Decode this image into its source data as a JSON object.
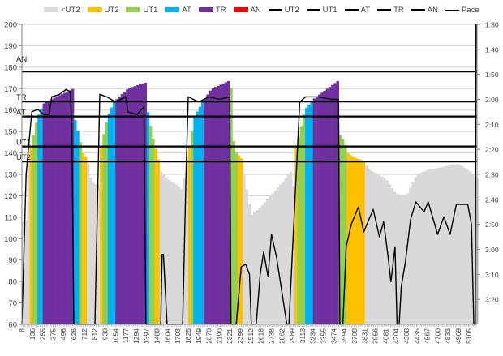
{
  "chart_data": {
    "type": "bar",
    "title": "",
    "xlabel": "",
    "ylabel": "",
    "ylim": [
      60,
      200
    ],
    "yticks": [
      60,
      70,
      80,
      90,
      100,
      110,
      120,
      130,
      140,
      150,
      160,
      170,
      180,
      190,
      200
    ],
    "y2lim_seconds": [
      90,
      210
    ],
    "y2ticks": [
      "1:30",
      "1:40",
      "1:50",
      "2:00",
      "2:10",
      "2:20",
      "2:30",
      "2:40",
      "2:50",
      "3:00",
      "3:10",
      "3:20"
    ],
    "y2ticks_seconds": [
      90,
      100,
      110,
      120,
      130,
      140,
      150,
      160,
      170,
      180,
      190,
      200
    ],
    "x_tick_labels": [
      "8",
      "136",
      "255",
      "375",
      "496",
      "626",
      "712",
      "812",
      "930",
      "1054",
      "1177",
      "1294",
      "1397",
      "1489",
      "1604",
      "1703",
      "1825",
      "1949",
      "2070",
      "2190",
      "2321",
      "2399",
      "2512",
      "2618",
      "2738",
      "2862",
      "2989",
      "3113",
      "3234",
      "3355",
      "3474",
      "3594",
      "3709",
      "3831",
      "3956",
      "4081",
      "4204",
      "4308",
      "4435",
      "4567",
      "4700",
      "4833",
      "4969",
      "5105"
    ],
    "x_max": 5210,
    "grid": true,
    "legend_position": "top",
    "zone_colors": {
      "<UT2": "#d9d9d9",
      "UT2": "#ffc000",
      "UT1": "#92d050",
      "AT": "#00b0f0",
      "TR": "#7030a0",
      "AN": "#ff0000"
    },
    "legend": [
      {
        "label": "<UT2",
        "type": "bar",
        "color": "#d9d9d9"
      },
      {
        "label": "UT2",
        "type": "bar",
        "color": "#ffc000"
      },
      {
        "label": "UT1",
        "type": "bar",
        "color": "#92d050"
      },
      {
        "label": "AT",
        "type": "bar",
        "color": "#00b0f0"
      },
      {
        "label": "TR",
        "type": "bar",
        "color": "#7030a0"
      },
      {
        "label": "AN",
        "type": "bar",
        "color": "#ff0000"
      },
      {
        "label": "UT2",
        "type": "line",
        "color": "#000000"
      },
      {
        "label": "UT1",
        "type": "line",
        "color": "#000000"
      },
      {
        "label": "AT",
        "type": "line",
        "color": "#000000"
      },
      {
        "label": "TR",
        "type": "line",
        "color": "#000000"
      },
      {
        "label": "AN",
        "type": "line",
        "color": "#000000"
      },
      {
        "label": "Pace",
        "type": "thinline",
        "color": "#000000"
      }
    ],
    "threshold_lines": [
      {
        "name": "AN",
        "value": 178
      },
      {
        "name": "TR",
        "value": 164
      },
      {
        "name": "AT",
        "value": 157
      },
      {
        "name": "UT1",
        "value": 143
      },
      {
        "name": "UT2",
        "value": 136
      }
    ],
    "heart_rate_series": [
      [
        8,
        108
      ],
      [
        60,
        108
      ],
      [
        90,
        140
      ],
      [
        130,
        144
      ],
      [
        190,
        156
      ],
      [
        265,
        163
      ],
      [
        400,
        166
      ],
      [
        620,
        170
      ],
      [
        625,
        158
      ],
      [
        660,
        150
      ],
      [
        700,
        140
      ],
      [
        745,
        137
      ],
      [
        760,
        130
      ],
      [
        800,
        126
      ],
      [
        860,
        125
      ],
      [
        870,
        140
      ],
      [
        900,
        146
      ],
      [
        960,
        157
      ],
      [
        1040,
        164
      ],
      [
        1200,
        170
      ],
      [
        1400,
        173
      ],
      [
        1405,
        160
      ],
      [
        1460,
        145
      ],
      [
        1500,
        138
      ],
      [
        1520,
        132
      ],
      [
        1600,
        128
      ],
      [
        1760,
        123
      ],
      [
        1815,
        138
      ],
      [
        1850,
        145
      ],
      [
        1900,
        157
      ],
      [
        2000,
        164
      ],
      [
        2100,
        170
      ],
      [
        2330,
        174
      ],
      [
        2335,
        150
      ],
      [
        2370,
        140
      ],
      [
        2420,
        137
      ],
      [
        2440,
        130
      ],
      [
        2520,
        111
      ],
      [
        2620,
        115
      ],
      [
        2862,
        126
      ],
      [
        2990,
        132
      ],
      [
        3000,
        120
      ],
      [
        3020,
        140
      ],
      [
        3060,
        146
      ],
      [
        3140,
        160
      ],
      [
        3235,
        165
      ],
      [
        3535,
        174
      ],
      [
        3540,
        149
      ],
      [
        3600,
        145
      ],
      [
        3630,
        140
      ],
      [
        3700,
        138
      ],
      [
        3840,
        136
      ],
      [
        3850,
        133
      ],
      [
        4081,
        128
      ],
      [
        4204,
        121
      ],
      [
        4308,
        120
      ],
      [
        4435,
        130
      ],
      [
        4567,
        132
      ],
      [
        4833,
        134
      ],
      [
        4969,
        135
      ],
      [
        5105,
        132
      ],
      [
        5210,
        128
      ]
    ],
    "zone_segments": [
      [
        8,
        90,
        "<UT2"
      ],
      [
        90,
        130,
        "UT2"
      ],
      [
        130,
        190,
        "UT1"
      ],
      [
        190,
        265,
        "AT"
      ],
      [
        265,
        620,
        "TR"
      ],
      [
        620,
        660,
        "AT"
      ],
      [
        660,
        700,
        "UT1"
      ],
      [
        700,
        745,
        "UT2"
      ],
      [
        745,
        860,
        "<UT2"
      ],
      [
        860,
        890,
        "UT2"
      ],
      [
        890,
        960,
        "UT1"
      ],
      [
        960,
        1040,
        "AT"
      ],
      [
        1040,
        1400,
        "TR"
      ],
      [
        1400,
        1420,
        "AT"
      ],
      [
        1420,
        1460,
        "UT1"
      ],
      [
        1460,
        1510,
        "UT2"
      ],
      [
        1510,
        1815,
        "<UT2"
      ],
      [
        1815,
        1850,
        "UT2"
      ],
      [
        1850,
        1900,
        "UT1"
      ],
      [
        1900,
        2000,
        "AT"
      ],
      [
        2000,
        2330,
        "TR"
      ],
      [
        2330,
        2370,
        "UT1"
      ],
      [
        2370,
        2420,
        "UT2"
      ],
      [
        2420,
        3020,
        "<UT2"
      ],
      [
        3020,
        3060,
        "UT2"
      ],
      [
        3060,
        3140,
        "UT1"
      ],
      [
        3140,
        3235,
        "AT"
      ],
      [
        3235,
        3535,
        "TR"
      ],
      [
        3535,
        3630,
        "UT1"
      ],
      [
        3630,
        3840,
        "UT2"
      ],
      [
        3840,
        5210,
        "<UT2"
      ]
    ],
    "pace_series_seconds": [
      [
        8,
        210
      ],
      [
        60,
        150
      ],
      [
        130,
        125
      ],
      [
        200,
        124
      ],
      [
        260,
        126
      ],
      [
        330,
        126
      ],
      [
        360,
        119
      ],
      [
        450,
        118
      ],
      [
        530,
        116
      ],
      [
        580,
        117
      ],
      [
        600,
        130
      ],
      [
        625,
        210
      ],
      [
        815,
        210
      ],
      [
        870,
        118
      ],
      [
        950,
        119
      ],
      [
        1054,
        121
      ],
      [
        1177,
        119
      ],
      [
        1200,
        125
      ],
      [
        1300,
        126
      ],
      [
        1370,
        123
      ],
      [
        1390,
        210
      ],
      [
        1530,
        210
      ],
      [
        1545,
        182
      ],
      [
        1560,
        182
      ],
      [
        1600,
        210
      ],
      [
        1760,
        210
      ],
      [
        1800,
        150
      ],
      [
        1825,
        119
      ],
      [
        1950,
        121
      ],
      [
        2070,
        119
      ],
      [
        2190,
        120
      ],
      [
        2321,
        119
      ],
      [
        2330,
        210
      ],
      [
        2370,
        210
      ],
      [
        2410,
        187
      ],
      [
        2460,
        186
      ],
      [
        2500,
        190
      ],
      [
        2520,
        210
      ],
      [
        2570,
        210
      ],
      [
        2610,
        190
      ],
      [
        2650,
        181
      ],
      [
        2700,
        191
      ],
      [
        2740,
        174
      ],
      [
        2800,
        183
      ],
      [
        2925,
        210
      ],
      [
        2950,
        210
      ],
      [
        3080,
        121
      ],
      [
        3150,
        119
      ],
      [
        3300,
        119
      ],
      [
        3450,
        120
      ],
      [
        3530,
        120
      ],
      [
        3545,
        210
      ],
      [
        3580,
        210
      ],
      [
        3617,
        179
      ],
      [
        3674,
        170
      ],
      [
        3755,
        163
      ],
      [
        3818,
        173
      ],
      [
        3931,
        164
      ],
      [
        4006,
        175
      ],
      [
        4056,
        169
      ],
      [
        4106,
        182
      ],
      [
        4143,
        193
      ],
      [
        4192,
        179
      ],
      [
        4214,
        210
      ],
      [
        4235,
        210
      ],
      [
        4256,
        195
      ],
      [
        4298,
        185
      ],
      [
        4359,
        168
      ],
      [
        4423,
        161
      ],
      [
        4527,
        165
      ],
      [
        4580,
        161
      ],
      [
        4700,
        174
      ],
      [
        4780,
        167
      ],
      [
        4860,
        174
      ],
      [
        4942,
        162
      ],
      [
        5091,
        162
      ],
      [
        5140,
        170
      ],
      [
        5170,
        210
      ],
      [
        5190,
        210
      ],
      [
        5200,
        90
      ]
    ]
  }
}
